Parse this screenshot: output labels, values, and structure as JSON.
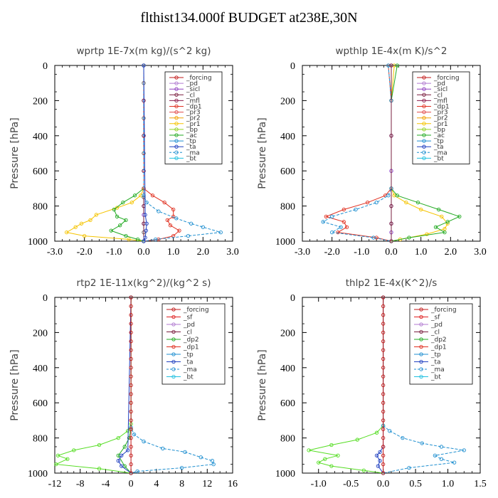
{
  "main_title": "flthist134.000f  BUDGET at238E,30N",
  "chart_data": [
    {
      "type": "line",
      "title": "wprtp  1E-7x(m kg)/(s^2 kg)",
      "ylabel": "Pressure [hPa]",
      "xlabel": "",
      "xlim": [
        -3.0,
        3.0
      ],
      "ylim": [
        1000,
        0
      ],
      "y_reversed": true,
      "xticks": [
        "-3.0",
        "-2.0",
        "-1.0",
        "0.0",
        "1.0",
        "2.0",
        "3.0"
      ],
      "yticks": [
        "0",
        "200",
        "400",
        "600",
        "800",
        "1000"
      ],
      "grid": false,
      "legend_position": "top-right",
      "legend": [
        "_forcing",
        "_pd",
        "_sicl",
        "_cl",
        "_mfl",
        "_dp1",
        "_pr3",
        "_pr2",
        "_pr1",
        "_bp",
        "_ac",
        "_tp",
        "_ta",
        "_ma",
        "_bt"
      ],
      "series": [
        {
          "name": "_forcing",
          "color": "#555555",
          "x": [
            0,
            0,
            0,
            0,
            0,
            0,
            0,
            0,
            0,
            0,
            0,
            0,
            0,
            0
          ],
          "y": [
            0,
            100,
            200,
            300,
            400,
            500,
            600,
            700,
            750,
            800,
            850,
            900,
            950,
            1000
          ]
        },
        {
          "name": "_sicl",
          "color": "#a050e0",
          "x": [
            0,
            0,
            0,
            0,
            0,
            0,
            0,
            0,
            0
          ],
          "y": [
            0,
            200,
            400,
            600,
            700,
            800,
            850,
            900,
            1000
          ]
        },
        {
          "name": "_cl",
          "color": "#7a1f3f",
          "x": [
            0,
            0,
            0,
            0,
            0,
            0,
            0
          ],
          "y": [
            0,
            200,
            400,
            600,
            800,
            900,
            1000
          ]
        },
        {
          "name": "_pr1",
          "color": "#f5c400",
          "x": [
            0,
            0,
            -0.1,
            -0.4,
            -0.9,
            -1.6,
            -1.8,
            -2.1,
            -2.3,
            -2.6,
            -2.0,
            -0.5,
            0
          ],
          "y": [
            0,
            700,
            740,
            780,
            810,
            850,
            880,
            900,
            920,
            950,
            970,
            990,
            1000
          ]
        },
        {
          "name": "_ac",
          "color": "#22aa22",
          "x": [
            0,
            0,
            -0.3,
            -0.7,
            -1.0,
            -0.9,
            -0.6,
            -0.8,
            -1.1,
            -0.6,
            -0.2,
            0
          ],
          "y": [
            0,
            700,
            740,
            780,
            820,
            860,
            880,
            910,
            940,
            970,
            990,
            1000
          ]
        },
        {
          "name": "_dp1",
          "color": "#e03020",
          "x": [
            0,
            0,
            0.3,
            0.7,
            1.0,
            1.0,
            0.8,
            0.9,
            1.2,
            1.0,
            0.5,
            0
          ],
          "y": [
            0,
            700,
            740,
            780,
            820,
            860,
            880,
            910,
            940,
            970,
            990,
            1000
          ]
        },
        {
          "name": "_tp",
          "color": "#1f8fd0",
          "x": [
            0,
            0,
            0.1,
            0.5,
            1.1,
            1.6,
            2.0,
            2.6,
            1.5,
            0.4,
            0
          ],
          "y": [
            0,
            740,
            780,
            830,
            870,
            900,
            920,
            950,
            970,
            990,
            1000
          ]
        },
        {
          "name": "_ta",
          "color": "#2040c0",
          "x": [
            0,
            0.05,
            0.1,
            0.08,
            0.05,
            0
          ],
          "y": [
            0,
            850,
            900,
            940,
            980,
            1000
          ]
        }
      ]
    },
    {
      "type": "line",
      "title": "wpthlp  1E-4x(m K)/s^2",
      "ylabel": "Pressure [hPa]",
      "xlabel": "",
      "xlim": [
        -3.0,
        3.0
      ],
      "ylim": [
        1000,
        0
      ],
      "y_reversed": true,
      "xticks": [
        "-3.0",
        "-2.0",
        "-1.0",
        "0.0",
        "1.0",
        "2.0",
        "3.0"
      ],
      "yticks": [
        "0",
        "200",
        "400",
        "600",
        "800",
        "1000"
      ],
      "grid": false,
      "legend_position": "top-right",
      "legend": [
        "_forcing",
        "_pd",
        "_sicl",
        "_cl",
        "_mfl",
        "_dp1",
        "_pr3",
        "_pr2",
        "_pr1",
        "_bp",
        "_ac",
        "_tp",
        "_ta",
        "_ma",
        "_bt"
      ],
      "series": [
        {
          "name": "_forcing",
          "color": "#555555",
          "x": [
            0,
            0,
            0,
            0,
            0,
            0,
            0,
            0
          ],
          "y": [
            0,
            200,
            400,
            600,
            800,
            900,
            950,
            1000
          ]
        },
        {
          "name": "_sicl",
          "color": "#a050e0",
          "x": [
            0,
            0,
            0,
            0,
            0,
            0,
            0,
            0
          ],
          "y": [
            0,
            200,
            400,
            600,
            800,
            900,
            950,
            1000
          ]
        },
        {
          "name": "_pr1",
          "color": "#f5c400",
          "x": [
            0.1,
            0,
            0,
            0.1,
            0.5,
            1.0,
            1.7,
            1.9,
            1.8,
            1.2,
            0.3,
            0
          ],
          "y": [
            0,
            200,
            700,
            740,
            780,
            820,
            860,
            900,
            930,
            960,
            990,
            1000
          ]
        },
        {
          "name": "_ac",
          "color": "#22aa22",
          "x": [
            0.2,
            0,
            0,
            0.2,
            0.9,
            1.6,
            2.3,
            1.9,
            1.5,
            1.8,
            0.6,
            0
          ],
          "y": [
            0,
            200,
            700,
            740,
            780,
            820,
            860,
            890,
            920,
            950,
            980,
            1000
          ]
        },
        {
          "name": "_dp1",
          "color": "#e03020",
          "x": [
            -0.1,
            0,
            0,
            -0.2,
            -0.8,
            -1.6,
            -2.2,
            -1.6,
            -1.5,
            -1.8,
            -0.5,
            0
          ],
          "y": [
            0,
            200,
            700,
            740,
            780,
            820,
            860,
            890,
            920,
            950,
            980,
            1000
          ]
        },
        {
          "name": "_tp",
          "color": "#1f8fd0",
          "x": [
            -0.1,
            0,
            0,
            -0.1,
            -0.5,
            -1.2,
            -2.0,
            -2.3,
            -1.7,
            -2.0,
            -0.6,
            0
          ],
          "y": [
            0,
            200,
            700,
            740,
            780,
            820,
            860,
            890,
            920,
            950,
            980,
            1000
          ]
        },
        {
          "name": "_cl",
          "color": "#7a1f3f",
          "x": [
            0,
            0,
            0,
            0,
            0
          ],
          "y": [
            0,
            400,
            800,
            900,
            1000
          ]
        }
      ]
    },
    {
      "type": "line",
      "title": "rtp2  1E-11x(kg^2)/(kg^2 s)",
      "ylabel": "Pressure [hPa]",
      "xlabel": "",
      "xlim": [
        -12,
        16
      ],
      "ylim": [
        1000,
        0
      ],
      "y_reversed": true,
      "xticks": [
        "-12",
        "-8",
        "-4",
        "0",
        "4",
        "8",
        "12",
        "16"
      ],
      "yticks": [
        "0",
        "200",
        "400",
        "600",
        "800",
        "1000"
      ],
      "grid": false,
      "legend_position": "top-right",
      "legend": [
        "_forcing",
        "_sf",
        "_pd",
        "_cl",
        "_dp2",
        "_dp1",
        "_tp",
        "_ta",
        "_ma",
        "_bt"
      ],
      "series": [
        {
          "name": "_dp1",
          "color": "#55dd22",
          "x": [
            0,
            0,
            -0.5,
            -2.0,
            -5.0,
            -9.0,
            -11.5,
            -10.0,
            -11.8,
            -5.0,
            0
          ],
          "y": [
            0,
            720,
            760,
            800,
            840,
            870,
            900,
            920,
            950,
            975,
            1000
          ]
        },
        {
          "name": "_dp2",
          "color": "#22aa22",
          "x": [
            0,
            0,
            -0.3,
            -1.0,
            -2.0,
            -1.0,
            0
          ],
          "y": [
            0,
            750,
            800,
            850,
            900,
            960,
            1000
          ]
        },
        {
          "name": "_tp",
          "color": "#1f8fd0",
          "x": [
            0,
            0,
            0.5,
            2.0,
            5.0,
            8.5,
            11.0,
            12.8,
            13.0,
            8.0,
            1.0,
            0
          ],
          "y": [
            0,
            740,
            780,
            820,
            860,
            880,
            910,
            930,
            950,
            970,
            990,
            1000
          ]
        },
        {
          "name": "_ta",
          "color": "#2040c0",
          "x": [
            0,
            -0.5,
            -1.5,
            -2.0,
            -1.5,
            0
          ],
          "y": [
            0,
            870,
            900,
            930,
            960,
            1000
          ]
        },
        {
          "name": "_forcing",
          "color": "#c21818",
          "x": [
            0,
            0,
            0,
            0,
            0,
            0,
            0,
            0,
            0,
            0,
            0,
            0,
            0,
            0,
            0,
            0,
            0,
            0,
            0,
            0,
            0
          ],
          "y": [
            0,
            50,
            100,
            150,
            200,
            250,
            300,
            350,
            400,
            450,
            500,
            550,
            600,
            650,
            700,
            750,
            800,
            850,
            900,
            950,
            1000
          ]
        }
      ]
    },
    {
      "type": "line",
      "title": "thlp2  1E-4x(K^2)/s",
      "ylabel": "Pressure [hPa]",
      "xlabel": "",
      "xlim": [
        -1.25,
        1.5
      ],
      "ylim": [
        1000,
        0
      ],
      "y_reversed": true,
      "xticks": [
        "-1.0",
        "-0.5",
        "0.0",
        "0.5",
        "1.0",
        "1.5"
      ],
      "yticks": [
        "0",
        "200",
        "400",
        "600",
        "800",
        "1000"
      ],
      "grid": false,
      "legend_position": "top-right",
      "legend": [
        "_forcing",
        "_sf",
        "_pd",
        "_cl",
        "_dp2",
        "_dp1",
        "_tp",
        "_ta",
        "_ma",
        "_bt"
      ],
      "series": [
        {
          "name": "_dp1",
          "color": "#55dd22",
          "x": [
            0,
            0,
            -0.1,
            -0.4,
            -0.8,
            -1.15,
            -0.7,
            -0.9,
            -1.0,
            -0.8,
            -0.3,
            0
          ],
          "y": [
            0,
            730,
            770,
            810,
            840,
            870,
            900,
            920,
            940,
            960,
            985,
            1000
          ]
        },
        {
          "name": "_tp",
          "color": "#1f8fd0",
          "x": [
            0,
            0,
            0.1,
            0.3,
            0.6,
            0.9,
            1.25,
            0.8,
            0.9,
            1.1,
            0.4,
            0
          ],
          "y": [
            0,
            730,
            760,
            800,
            830,
            850,
            870,
            900,
            920,
            940,
            970,
            1000
          ]
        },
        {
          "name": "_ta",
          "color": "#2040c0",
          "x": [
            0,
            0,
            -0.05,
            -0.1,
            -0.05,
            -0.08,
            0
          ],
          "y": [
            0,
            850,
            880,
            900,
            930,
            960,
            1000
          ]
        },
        {
          "name": "_forcing",
          "color": "#c21818",
          "x": [
            0,
            0,
            0,
            0,
            0,
            0,
            0,
            0,
            0,
            0,
            0,
            0,
            0,
            0,
            0,
            0,
            0,
            0,
            0,
            0,
            0
          ],
          "y": [
            0,
            50,
            100,
            150,
            200,
            250,
            300,
            350,
            400,
            450,
            500,
            550,
            600,
            650,
            700,
            750,
            800,
            850,
            900,
            950,
            1000
          ]
        }
      ]
    }
  ]
}
